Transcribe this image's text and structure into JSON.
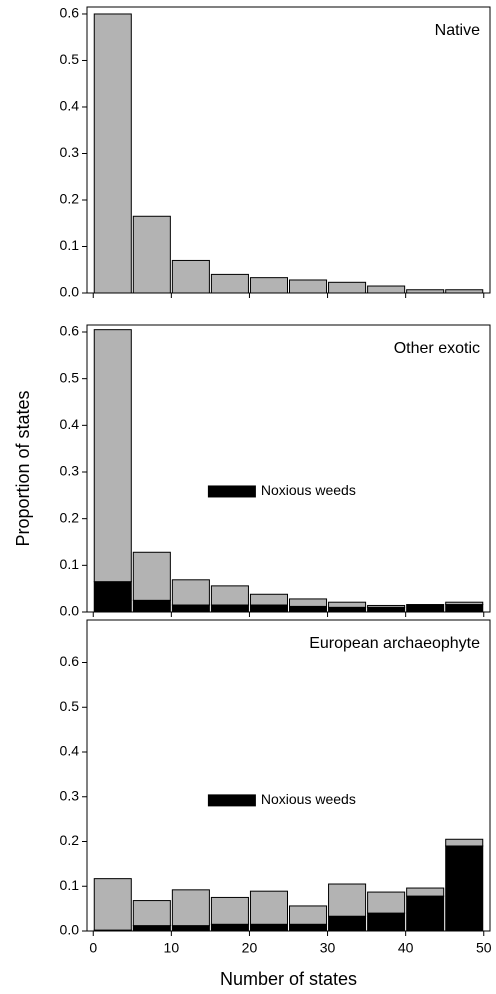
{
  "chart_data": [
    {
      "type": "histogram",
      "annotation": "Native",
      "bins": [
        0,
        5,
        10,
        15,
        20,
        25,
        30,
        35,
        40,
        45,
        50
      ],
      "values": [
        0.6,
        0.165,
        0.07,
        0.04,
        0.033,
        0.028,
        0.023,
        0.015,
        0.007,
        0.007
      ],
      "color": "#b3b3b3",
      "xlim": [
        -0.8,
        50.8
      ],
      "ylim": [
        0,
        0.615
      ],
      "yticks": [
        {
          "value": 0,
          "label": "0.0"
        },
        0.1,
        0.2,
        0.3,
        0.4,
        0.5,
        0.6
      ]
    },
    {
      "type": "histogram",
      "annotation": "Other exotic",
      "ylabel": "Proportion of states",
      "bins": [
        0,
        5,
        10,
        15,
        20,
        25,
        30,
        35,
        40,
        45,
        50
      ],
      "series": [
        {
          "name": "Noxious weeds",
          "color": "#000000",
          "values": [
            0.065,
            0.025,
            0.015,
            0.015,
            0.015,
            0.012,
            0.01,
            0.01,
            0.016,
            0.016
          ]
        },
        {
          "color": "#b3b3b3",
          "values": [
            0.54,
            0.103,
            0.054,
            0.041,
            0.023,
            0.016,
            0.011,
            0.004,
            0,
            0.005
          ]
        }
      ],
      "legend": "center",
      "xlim": [
        -0.8,
        50.8
      ],
      "ylim": [
        0,
        0.615
      ],
      "yticks": [
        {
          "value": 0,
          "label": "0.0"
        },
        0.1,
        0.2,
        0.3,
        0.4,
        0.5,
        0.6
      ]
    },
    {
      "type": "histogram",
      "annotation": "European archaeophyte",
      "xlabel": "Number of states",
      "bins": [
        0,
        5,
        10,
        15,
        20,
        25,
        30,
        35,
        40,
        45,
        50
      ],
      "series": [
        {
          "name": "Noxious weeds",
          "color": "#000000",
          "values": [
            0.002,
            0.012,
            0.012,
            0.015,
            0.015,
            0.015,
            0.033,
            0.04,
            0.078,
            0.19
          ]
        },
        {
          "color": "#b3b3b3",
          "values": [
            0.115,
            0.056,
            0.08,
            0.06,
            0.074,
            0.041,
            0.072,
            0.047,
            0.018,
            0.015
          ]
        }
      ],
      "legend": "center",
      "xlim": [
        -0.8,
        50.8
      ],
      "ylim": [
        0,
        0.695
      ],
      "xticks": [
        0,
        10,
        20,
        30,
        40,
        50
      ],
      "yticks": [
        {
          "value": 0,
          "label": "0.0"
        },
        0.1,
        0.2,
        0.3,
        0.4,
        0.5,
        0.6
      ]
    }
  ]
}
